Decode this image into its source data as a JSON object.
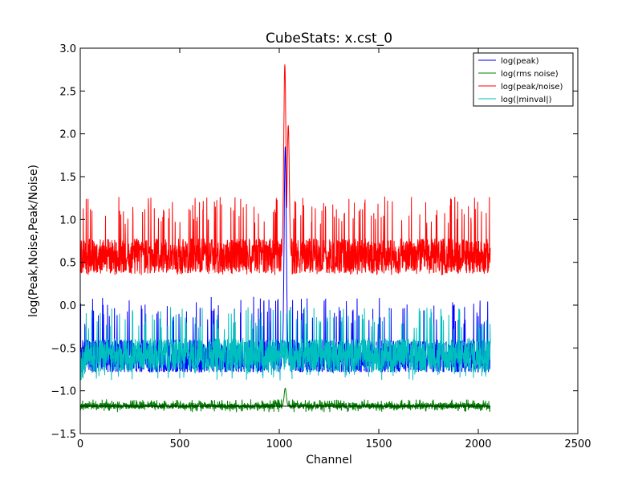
{
  "chart_data": {
    "type": "line",
    "title": "CubeStats: x.cst_0",
    "xlabel": "Channel",
    "ylabel": "log(Peak,Noise,Peak/Noise)",
    "xlim": [
      0,
      2500
    ],
    "ylim": [
      -1.5,
      3.0
    ],
    "xticks": [
      0,
      500,
      1000,
      1500,
      2000,
      2500
    ],
    "xtick_labels": [
      "0",
      "500",
      "1000",
      "1500",
      "2000",
      "2500"
    ],
    "yticks": [
      -1.5,
      -1.0,
      -0.5,
      0.0,
      0.5,
      1.0,
      1.5,
      2.0,
      2.5,
      3.0
    ],
    "ytick_labels": [
      "−1.5",
      "−1.0",
      "−0.5",
      "0.0",
      "0.5",
      "1.0",
      "1.5",
      "2.0",
      "2.5",
      "3.0"
    ],
    "legend_position": "top-right",
    "grid": false,
    "series": [
      {
        "name": "log(peak)",
        "color": "#0000ff",
        "x_range": [
          0,
          2060
        ],
        "baseline": -0.62,
        "noise_band": [
          -0.78,
          0.1
        ],
        "features": [
          {
            "x": 1030,
            "y": 1.85
          }
        ]
      },
      {
        "name": "log(rms noise)",
        "color": "#008000",
        "x_range": [
          0,
          2060
        ],
        "baseline": -1.18,
        "noise_band": [
          -1.25,
          -1.1
        ],
        "features": [
          {
            "x": 1030,
            "y": -0.97
          }
        ]
      },
      {
        "name": "log(peak/noise)",
        "color": "#ff0000",
        "x_range": [
          0,
          2060
        ],
        "baseline": 0.55,
        "noise_band": [
          0.35,
          1.27
        ],
        "features": [
          {
            "x": 1028,
            "y": 2.81
          },
          {
            "x": 1045,
            "y": 2.1
          }
        ]
      },
      {
        "name": "log(|minval|)",
        "color": "#00bfbf",
        "x_range": [
          0,
          2060
        ],
        "baseline": -0.6,
        "noise_band": [
          -0.88,
          -0.02
        ],
        "features": [
          {
            "x": 1030,
            "y": -0.85
          }
        ]
      }
    ],
    "reference_line": {
      "color": "#000000",
      "x_range": [
        0,
        2060
      ],
      "y": -1.18
    }
  }
}
